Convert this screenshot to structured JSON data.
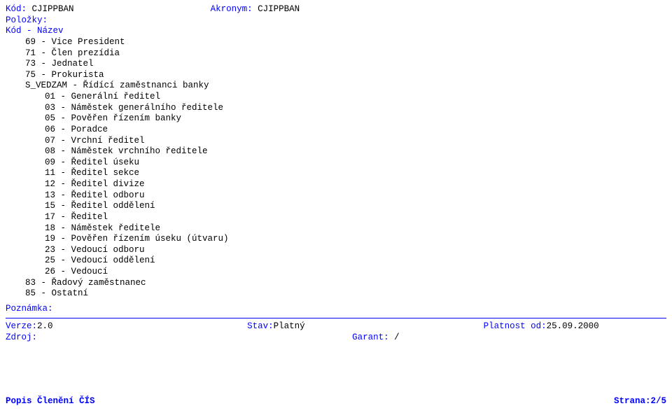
{
  "colors": {
    "blue": "#0000ff",
    "black": "#000000",
    "background": "#ffffff"
  },
  "typography": {
    "font_family": "Courier New",
    "font_size_pt": 9.5,
    "line_height": 1.25
  },
  "header": {
    "kod_label": "Kód:",
    "kod_value": "CJIPPBAN",
    "akronym_label": "Akronym:",
    "akronym_value": "CJIPPBAN",
    "polozky_label": "Položky:",
    "subheader": "Kód - Název"
  },
  "groups": [
    {
      "indent": 1,
      "lines": [
        "69 - Vice President",
        "71 - Člen prezídia",
        "73 - Jednatel",
        "75 - Prokurista"
      ]
    },
    {
      "indent": 1,
      "lines": [
        "S_VEDZAM - Řídící zaměstnanci banky"
      ]
    },
    {
      "indent": 2,
      "lines": [
        "01 - Generální ředitel",
        "03 - Náměstek generálního ředitele",
        "05 - Pověřen řízením banky",
        "06 - Poradce",
        "07 - Vrchní ředitel",
        "08 - Náměstek vrchního ředitele",
        "09 - Ředitel úseku",
        "11 - Ředitel sekce",
        "12 - Ředitel divize",
        "13 - Ředitel odboru",
        "15 - Ředitel oddělení",
        "17 - Ředitel",
        "18 - Náměstek ředitele",
        "19 - Pověřen řízením úseku (útvaru)",
        "23 - Vedoucí odboru",
        "25 - Vedoucí oddělení",
        "26 - Vedoucí"
      ]
    },
    {
      "indent": 1,
      "lines": [
        "83 - Řadový zaměstnanec",
        "85 - Ostatní"
      ]
    }
  ],
  "poznamka_label": "Poznámka:",
  "footer": {
    "verze_label": "Verze:",
    "verze_value": "2.0",
    "stav_label": "Stav:",
    "stav_value": "Platný",
    "platnost_label": "Platnost od:",
    "platnost_value": "25.09.2000",
    "zdroj_label": "Zdroj:",
    "garant_label": "Garant:",
    "garant_value": " /"
  },
  "bottom": {
    "left": "Popis Členění ČÍS",
    "right": "Strana:2/5"
  }
}
